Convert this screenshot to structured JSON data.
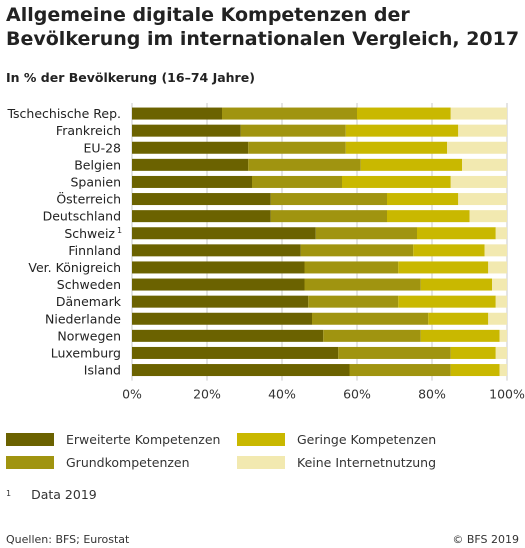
{
  "header": {
    "title": "Allgemeine digitale Kompetenzen der Bevölkerung im internationalen Vergleich, 2017",
    "subtitle": "In % der Bevölkerung (16–74 Jahre)"
  },
  "chart_data": {
    "type": "bar",
    "orientation": "horizontal",
    "stacked": true,
    "categories": [
      "Tschechische Rep.",
      "Frankreich",
      "EU-28",
      "Belgien",
      "Spanien",
      "Österreich",
      "Deutschland",
      "Schweiz",
      "Finnland",
      "Ver. Königreich",
      "Schweden",
      "Dänemark",
      "Niederlande",
      "Norwegen",
      "Luxemburg",
      "Island"
    ],
    "category_footnotes": {
      "Schweiz": "1"
    },
    "series": [
      {
        "name": "Erweiterte Kompetenzen",
        "color": "#6b6200",
        "values": [
          24,
          29,
          31,
          31,
          32,
          37,
          37,
          49,
          45,
          46,
          46,
          47,
          48,
          51,
          55,
          58
        ]
      },
      {
        "name": "Grundkompetenzen",
        "color": "#a09410",
        "values": [
          36,
          28,
          26,
          30,
          24,
          31,
          31,
          27,
          30,
          25,
          31,
          24,
          31,
          26,
          30,
          27
        ]
      },
      {
        "name": "Geringe Kompetenzen",
        "color": "#c9b800",
        "values": [
          25,
          30,
          27,
          27,
          29,
          19,
          22,
          21,
          19,
          24,
          19,
          26,
          16,
          21,
          12,
          13
        ]
      },
      {
        "name": "Keine Internetnutzung",
        "color": "#f2e9b0",
        "values": [
          15,
          13,
          16,
          12,
          15,
          13,
          10,
          3,
          6,
          5,
          4,
          3,
          5,
          2,
          3,
          2
        ]
      }
    ],
    "xlim": [
      0,
      100
    ],
    "xticks": [
      "0%",
      "20%",
      "40%",
      "60%",
      "80%",
      "100%"
    ],
    "grid": true
  },
  "legend": [
    {
      "label": "Erweiterte Kompetenzen",
      "color": "#6b6200"
    },
    {
      "label": "Geringe Kompetenzen",
      "color": "#c9b800"
    },
    {
      "label": "Grundkompetenzen",
      "color": "#a09410"
    },
    {
      "label": "Keine Internetnutzung",
      "color": "#f2e9b0"
    }
  ],
  "note": {
    "marker": "1",
    "text": "Data 2019"
  },
  "footer": {
    "source": "Quellen: BFS; Eurostat",
    "copyright": "© BFS 2019"
  }
}
